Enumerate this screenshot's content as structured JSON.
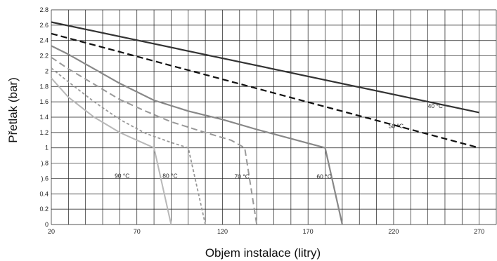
{
  "chart_data": {
    "type": "line",
    "xlabel": "Objem instalace (litry)",
    "ylabel": "Přetlak (bar)",
    "xlim": [
      20,
      280
    ],
    "ylim": [
      0,
      2.8
    ],
    "x_grid_step": 10,
    "y_grid_step": 0.2,
    "x_ticks": [
      20,
      70,
      120,
      170,
      220,
      270
    ],
    "x_tick_labels": [
      "20",
      "70",
      "120",
      "170",
      "220",
      "270"
    ],
    "y_ticks": [
      0,
      0.2,
      0.4,
      0.6,
      0.8,
      1.0,
      1.2,
      1.4,
      1.6,
      1.8,
      2.0,
      2.2,
      2.4,
      2.6,
      2.8
    ],
    "y_tick_labels": [
      "0",
      "0.2",
      "0.4",
      ").6",
      ").8",
      "1",
      "1.2",
      "1.4",
      "1.6",
      "1.8",
      "2",
      "2.2",
      "2.4",
      "2.6",
      "2.8"
    ],
    "grid": true,
    "series": [
      {
        "name": "40 °C",
        "label_pos": [
          240,
          1.52
        ],
        "color": "#333333",
        "dash": "solid",
        "width": 2.2,
        "points": [
          [
            20,
            2.64
          ],
          [
            270,
            1.46
          ]
        ]
      },
      {
        "name": "50 °C",
        "label_pos": [
          217,
          1.26
        ],
        "color": "#111111",
        "dash": "long",
        "width": 2.2,
        "points": [
          [
            20,
            2.49
          ],
          [
            270,
            1.0
          ]
        ]
      },
      {
        "name": "60 °C",
        "label_pos": [
          175,
          0.6
        ],
        "color": "#888888",
        "dash": "solid",
        "width": 2.2,
        "points": [
          [
            20,
            2.33
          ],
          [
            30,
            2.22
          ],
          [
            45,
            2.03
          ],
          [
            60,
            1.84
          ],
          [
            80,
            1.62
          ],
          [
            100,
            1.48
          ],
          [
            120,
            1.37
          ],
          [
            140,
            1.24
          ],
          [
            160,
            1.12
          ],
          [
            180,
            1.0
          ],
          [
            190,
            0
          ]
        ]
      },
      {
        "name": "70 °C",
        "label_pos": [
          127,
          0.6
        ],
        "color": "#999999",
        "dash": "long",
        "width": 2.0,
        "points": [
          [
            20,
            2.18
          ],
          [
            30,
            2.03
          ],
          [
            45,
            1.83
          ],
          [
            60,
            1.63
          ],
          [
            75,
            1.48
          ],
          [
            90,
            1.34
          ],
          [
            110,
            1.2
          ],
          [
            125,
            1.1
          ],
          [
            133,
            1.0
          ],
          [
            140,
            0
          ]
        ]
      },
      {
        "name": "80 °C",
        "label_pos": [
          85,
          0.61
        ],
        "color": "#999999",
        "dash": "short",
        "width": 1.8,
        "points": [
          [
            20,
            2.04
          ],
          [
            30,
            1.86
          ],
          [
            45,
            1.6
          ],
          [
            60,
            1.37
          ],
          [
            75,
            1.19
          ],
          [
            90,
            1.07
          ],
          [
            100,
            1.0
          ],
          [
            110,
            0
          ]
        ]
      },
      {
        "name": "90 °C",
        "label_pos": [
          57,
          0.61
        ],
        "color": "#b8b8b8",
        "dash": "solid",
        "width": 2.0,
        "points": [
          [
            20,
            1.91
          ],
          [
            30,
            1.66
          ],
          [
            45,
            1.4
          ],
          [
            60,
            1.2
          ],
          [
            70,
            1.1
          ],
          [
            80,
            1.0
          ],
          [
            90,
            0
          ]
        ]
      }
    ]
  }
}
